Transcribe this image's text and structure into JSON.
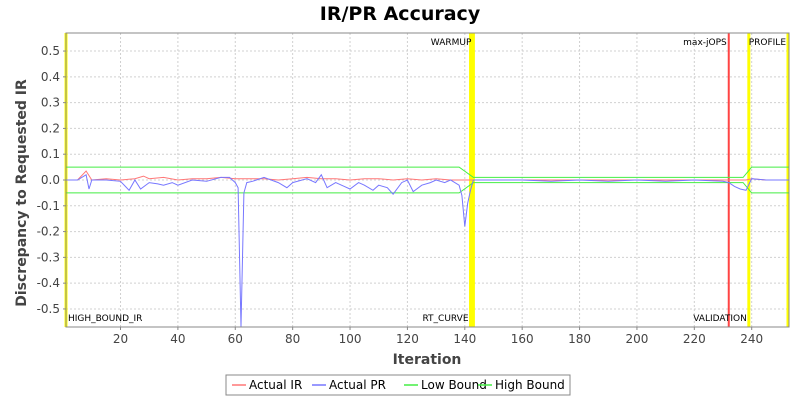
{
  "chart_data": {
    "type": "line",
    "title": "IR/PR Accuracy",
    "xlabel": "Iteration",
    "ylabel": "Discrepancy to Requested IR",
    "xlim": [
      1,
      253
    ],
    "ylim": [
      -0.57,
      0.57
    ],
    "x_ticks": [
      20,
      40,
      60,
      80,
      100,
      120,
      140,
      160,
      180,
      200,
      220,
      240
    ],
    "x_tick_labels": [
      "20",
      "40",
      "60",
      "80",
      "100",
      "120",
      "140",
      "160",
      "180",
      "200",
      "220",
      "240"
    ],
    "y_ticks": [
      -0.5,
      -0.4,
      -0.3,
      -0.2,
      -0.1,
      0.0,
      0.1,
      0.2,
      0.3,
      0.4,
      0.5
    ],
    "y_tick_labels": [
      "-0.5",
      "-0.4",
      "-0.3",
      "-0.2",
      "-0.1",
      "0.0",
      "0.1",
      "0.2",
      "0.3",
      "0.4",
      "0.5"
    ],
    "grid": true,
    "legend_position": "bottom-center",
    "markers": [
      {
        "label": "HIGH_BOUND_IR",
        "x": 1,
        "color": "#ffff00",
        "label_pos": "bottom"
      },
      {
        "label": "WARMUP",
        "x": 143,
        "color": "#ffff00",
        "label_pos": "top"
      },
      {
        "label": "RT_CURVE",
        "x": 142,
        "color": "#ffff00",
        "label_pos": "bottom"
      },
      {
        "label": "max-jOPS",
        "x": 232,
        "color": "#ff4444",
        "label_pos": "top"
      },
      {
        "label": "VALIDATION",
        "x": 239,
        "color": "#ffff00",
        "label_pos": "bottom"
      },
      {
        "label": "PROFILE",
        "x": 253,
        "color": "#ffff00",
        "label_pos": "top"
      }
    ],
    "series": [
      {
        "name": "Actual IR",
        "color": "#ff7777",
        "x": [
          1,
          5,
          8,
          10,
          15,
          20,
          25,
          28,
          30,
          35,
          40,
          45,
          50,
          55,
          60,
          65,
          70,
          75,
          80,
          85,
          90,
          95,
          100,
          105,
          110,
          115,
          120,
          125,
          130,
          135,
          140,
          141,
          143,
          150,
          160,
          170,
          180,
          190,
          200,
          210,
          220,
          230,
          232,
          235,
          238,
          240,
          245,
          250,
          253
        ],
        "values": [
          0.0,
          0.0,
          0.035,
          0.0,
          0.005,
          0.0,
          0.005,
          0.015,
          0.005,
          0.01,
          0.0,
          0.005,
          0.005,
          0.01,
          0.005,
          0.005,
          0.005,
          0.0,
          0.005,
          0.01,
          0.005,
          0.005,
          0.0,
          0.005,
          0.005,
          0.0,
          0.005,
          0.0,
          0.005,
          0.0,
          0.0,
          0.0,
          0.0,
          0.0,
          0.0,
          0.0,
          0.0,
          0.0,
          0.0,
          0.0,
          0.0,
          0.0,
          0.0,
          0.0,
          0.0,
          0.005,
          0.0,
          0.0,
          0.0
        ]
      },
      {
        "name": "Actual PR",
        "color": "#7777ff",
        "x": [
          1,
          5,
          8,
          9,
          10,
          15,
          20,
          23,
          25,
          27,
          30,
          33,
          35,
          38,
          40,
          45,
          50,
          55,
          58,
          60,
          61,
          62,
          63,
          64,
          66,
          70,
          75,
          78,
          80,
          85,
          88,
          90,
          92,
          95,
          98,
          100,
          103,
          105,
          108,
          110,
          113,
          115,
          118,
          120,
          122,
          125,
          128,
          130,
          133,
          135,
          138,
          139,
          140,
          141,
          142,
          143,
          150,
          160,
          170,
          180,
          190,
          200,
          210,
          220,
          230,
          232,
          234,
          236,
          238,
          240,
          245,
          250,
          253
        ],
        "values": [
          0.0,
          0.0,
          0.02,
          -0.035,
          0.0,
          0.0,
          -0.005,
          -0.04,
          0.0,
          -0.035,
          -0.01,
          -0.015,
          -0.02,
          -0.01,
          -0.02,
          0.0,
          -0.005,
          0.01,
          0.01,
          -0.01,
          -0.03,
          -0.57,
          -0.05,
          -0.01,
          -0.005,
          0.01,
          -0.01,
          -0.03,
          -0.01,
          0.005,
          -0.01,
          0.02,
          -0.03,
          -0.01,
          -0.025,
          -0.035,
          -0.01,
          -0.02,
          -0.04,
          -0.02,
          -0.03,
          -0.055,
          -0.01,
          0.0,
          -0.045,
          -0.02,
          -0.01,
          0.0,
          -0.01,
          0.0,
          -0.02,
          -0.06,
          -0.18,
          -0.09,
          -0.04,
          0.0,
          0.0,
          0.0,
          -0.005,
          0.0,
          -0.005,
          0.0,
          -0.005,
          0.0,
          -0.005,
          -0.01,
          -0.025,
          -0.035,
          -0.04,
          0.005,
          0.0,
          0.0,
          0.0
        ]
      },
      {
        "name": "Low Bound",
        "color": "#44ee44",
        "x": [
          1,
          138,
          143,
          231,
          233,
          237,
          240,
          253
        ],
        "values": [
          -0.05,
          -0.05,
          -0.01,
          -0.01,
          -0.01,
          -0.01,
          -0.05,
          -0.05
        ]
      },
      {
        "name": "High Bound",
        "color": "#44ee44",
        "x": [
          1,
          138,
          143,
          231,
          233,
          237,
          240,
          253
        ],
        "values": [
          0.05,
          0.05,
          0.01,
          0.01,
          0.01,
          0.01,
          0.05,
          0.05
        ]
      }
    ]
  }
}
